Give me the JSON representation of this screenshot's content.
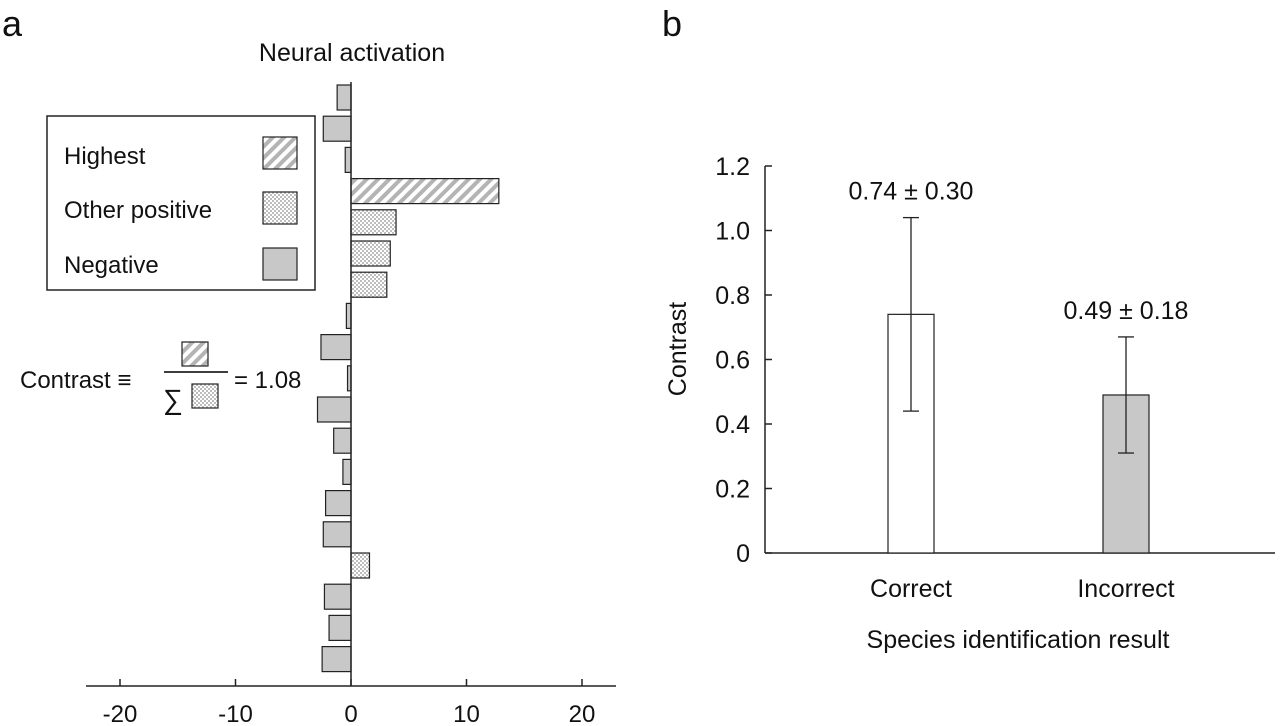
{
  "panel_a": {
    "panel_label": "a",
    "title": "Neural activation",
    "legend": [
      {
        "label": "Highest",
        "pattern": "hatch"
      },
      {
        "label": "Other positive",
        "pattern": "checker"
      },
      {
        "label": "Negative",
        "pattern": "solid"
      }
    ],
    "formula": {
      "prefix": "Contrast ≡",
      "sum_symbol": "∑",
      "suffix": "= 1.08"
    }
  },
  "panel_b": {
    "panel_label": "b",
    "error_labels": [
      "0.74 ± 0.30",
      "0.49 ± 0.18"
    ]
  },
  "colors": {
    "negative": "#c8c8c8",
    "edge": "#222222",
    "correct_bar": "#ffffff",
    "incorrect_bar": "#c8c8c8"
  },
  "chart_data": [
    {
      "type": "bar",
      "orientation": "horizontal",
      "title": "Neural activation",
      "xlim": [
        -23,
        23
      ],
      "xticks": [
        -20,
        -10,
        0,
        10,
        20
      ],
      "xtick_labels": [
        "-20",
        "-10",
        "0",
        "10",
        "20"
      ],
      "values": [
        -1.2,
        -2.4,
        -0.5,
        12.8,
        3.9,
        3.4,
        3.1,
        -0.4,
        -2.6,
        -0.3,
        -2.9,
        -1.5,
        -0.7,
        -2.2,
        -2.4,
        1.6,
        -2.3,
        -1.9,
        -2.5
      ],
      "categories_pattern": [
        "negative",
        "negative",
        "negative",
        "highest",
        "positive",
        "positive",
        "positive",
        "negative",
        "negative",
        "negative",
        "negative",
        "negative",
        "negative",
        "negative",
        "negative",
        "positive",
        "negative",
        "negative",
        "negative"
      ],
      "legend": [
        "Highest",
        "Other positive",
        "Negative"
      ],
      "legend_position": "upper-left"
    },
    {
      "type": "bar",
      "categories": [
        "Correct",
        "Incorrect"
      ],
      "values": [
        0.74,
        0.49
      ],
      "errors": [
        0.3,
        0.18
      ],
      "xlabel": "Species identification result",
      "ylabel": "Contrast",
      "ylim": [
        0,
        1.2
      ],
      "yticks": [
        0,
        0.2,
        0.4,
        0.6,
        0.8,
        1.0,
        1.2
      ],
      "ytick_labels": [
        "0",
        "0.2",
        "0.4",
        "0.6",
        "0.8",
        "1.0",
        "1.2"
      ]
    }
  ]
}
